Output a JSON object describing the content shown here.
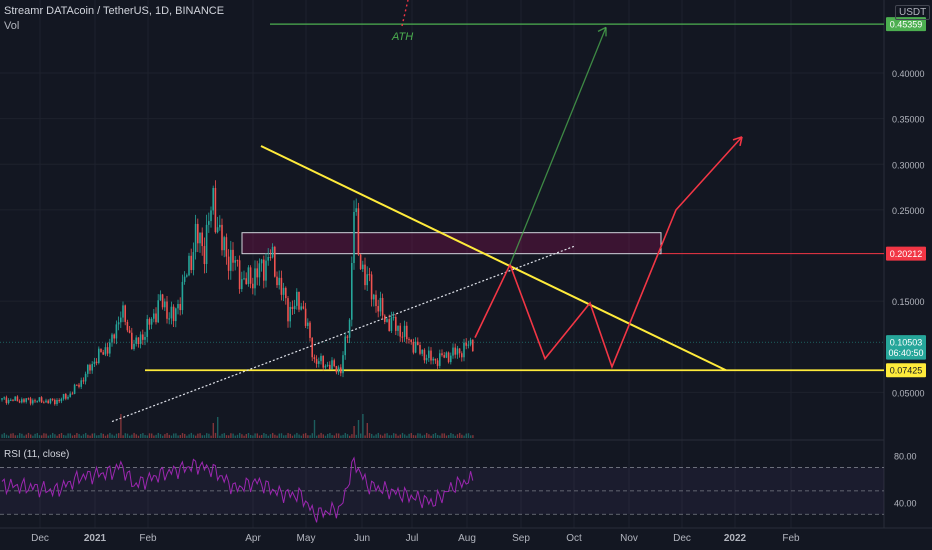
{
  "header": {
    "symbol": "Streamr DATAcoin / TetherUS, 1D, BINANCE",
    "volume_label": "Vol",
    "currency": "USDT",
    "rsi_label": "RSI (11, close)"
  },
  "colors": {
    "background": "#131722",
    "up": "#26a69a",
    "down": "#ef5350",
    "yellow": "#ffeb3b",
    "green_arrow": "#4caf50",
    "red_arrow": "#f23645",
    "rsi_line": "#9c27b0",
    "ath_line": "#4caf50"
  },
  "chart_data": {
    "type": "candlestick",
    "price_axis_ticks": [
      "0.40000",
      "0.35000",
      "0.30000",
      "0.25000",
      "0.15000",
      "0.05000"
    ],
    "price_axis_ticks_values": [
      0.4,
      0.35,
      0.3,
      0.25,
      0.15,
      0.05
    ],
    "time_axis_ticks": [
      "Dec",
      "2021",
      "Feb",
      "Apr",
      "May",
      "Jun",
      "Jul",
      "Aug",
      "Sep",
      "Oct",
      "Nov",
      "Dec",
      "2022",
      "Feb"
    ],
    "ylim": [
      0.0,
      0.48
    ],
    "price_labels": [
      {
        "text": "0.45359",
        "value": 0.45359,
        "color": "#4caf50"
      },
      {
        "text": "0.20212",
        "value": 0.20212,
        "color": "#f23645"
      },
      {
        "text": "0.10503",
        "value": 0.10503,
        "color": "#26a69a"
      },
      {
        "text": "06:40:50",
        "value": 0.0935,
        "color": "#26a69a"
      },
      {
        "text": "0.07425",
        "value": 0.07425,
        "color": "#ffeb3b"
      }
    ],
    "annotations": [
      {
        "text": "ATH"
      }
    ],
    "rsi": {
      "label": "RSI (11, close)",
      "ticks": [
        "80.00",
        "40.00"
      ],
      "ticks_values": [
        80,
        40
      ],
      "bands": [
        70,
        50,
        30
      ]
    },
    "price_path": [
      [
        0,
        0.042
      ],
      [
        14,
        0.041
      ],
      [
        24,
        0.04
      ],
      [
        30,
        0.046
      ],
      [
        36,
        0.062
      ],
      [
        42,
        0.085
      ],
      [
        50,
        0.105
      ],
      [
        54,
        0.14
      ],
      [
        60,
        0.1
      ],
      [
        66,
        0.12
      ],
      [
        72,
        0.15
      ],
      [
        78,
        0.13
      ],
      [
        84,
        0.18
      ],
      [
        88,
        0.22
      ],
      [
        92,
        0.21
      ],
      [
        96,
        0.26
      ],
      [
        100,
        0.21
      ],
      [
        106,
        0.19
      ],
      [
        110,
        0.17
      ],
      [
        116,
        0.18
      ],
      [
        122,
        0.2
      ],
      [
        126,
        0.17
      ],
      [
        130,
        0.14
      ],
      [
        136,
        0.15
      ],
      [
        142,
        0.085
      ],
      [
        148,
        0.08
      ],
      [
        154,
        0.075
      ],
      [
        158,
        0.13
      ],
      [
        160,
        0.26
      ],
      [
        162,
        0.2
      ],
      [
        168,
        0.16
      ],
      [
        174,
        0.13
      ],
      [
        178,
        0.125
      ],
      [
        184,
        0.11
      ],
      [
        190,
        0.095
      ],
      [
        196,
        0.085
      ],
      [
        202,
        0.09
      ],
      [
        208,
        0.095
      ],
      [
        214,
        0.105
      ]
    ],
    "rsi_path": [
      [
        0,
        55
      ],
      [
        14,
        53
      ],
      [
        24,
        50
      ],
      [
        36,
        62
      ],
      [
        50,
        66
      ],
      [
        54,
        72
      ],
      [
        60,
        55
      ],
      [
        72,
        64
      ],
      [
        84,
        70
      ],
      [
        88,
        72
      ],
      [
        96,
        68
      ],
      [
        106,
        52
      ],
      [
        116,
        58
      ],
      [
        126,
        48
      ],
      [
        136,
        46
      ],
      [
        142,
        30
      ],
      [
        154,
        35
      ],
      [
        160,
        75
      ],
      [
        166,
        55
      ],
      [
        176,
        50
      ],
      [
        186,
        45
      ],
      [
        196,
        40
      ],
      [
        206,
        55
      ],
      [
        214,
        60
      ]
    ]
  }
}
